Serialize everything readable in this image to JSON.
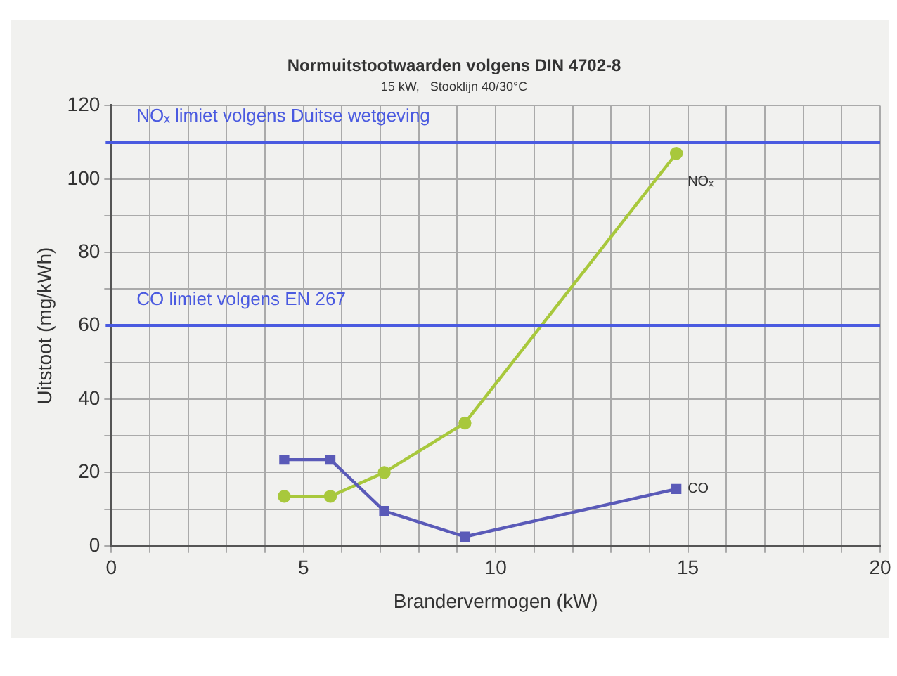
{
  "chart_data": {
    "type": "line",
    "title": "Normuitstootwaarden volgens DIN 4702-8",
    "subtitle": "15 kW,   Stooklijn 40/30°C",
    "xlabel": "Brandervermogen (kW)",
    "ylabel": "Uitstoot (mg/kWh)",
    "xlim": [
      0,
      20
    ],
    "xticks": [
      0,
      {
        "value": 1,
        "label": null
      },
      {
        "value": 2,
        "label": null
      },
      {
        "value": 3,
        "label": null
      },
      {
        "value": 4,
        "label": null
      },
      5,
      {
        "value": 6,
        "label": null
      },
      {
        "value": 7,
        "label": null
      },
      {
        "value": 8,
        "label": null
      },
      {
        "value": 9,
        "label": null
      },
      10,
      {
        "value": 11,
        "label": null
      },
      {
        "value": 12,
        "label": null
      },
      {
        "value": 13,
        "label": null
      },
      {
        "value": 14,
        "label": null
      },
      15,
      {
        "value": 16,
        "label": null
      },
      {
        "value": 17,
        "label": null
      },
      {
        "value": 18,
        "label": null
      },
      {
        "value": 19,
        "label": null
      },
      20
    ],
    "ylim": [
      0,
      120
    ],
    "yticks": [
      0,
      {
        "value": 10,
        "label": null
      },
      20,
      {
        "value": 30,
        "label": null
      },
      40,
      {
        "value": 50,
        "label": null
      },
      60,
      {
        "value": 70,
        "label": null
      },
      80,
      {
        "value": 90,
        "label": null
      },
      100,
      120
    ],
    "grid": true,
    "legend": false,
    "line_style": "solid",
    "x": [
      4.5,
      5.7,
      7.1,
      9.2,
      14.7
    ],
    "series": [
      {
        "name": "CO",
        "color": "#5a5ab8",
        "marker": "square",
        "values": [
          23.5,
          23.5,
          9.5,
          2.5,
          15.5
        ]
      },
      {
        "name": "NOₓ",
        "color": "#a8c83c",
        "marker": "circle",
        "values": [
          13.5,
          13.5,
          20,
          33.5,
          107
        ]
      }
    ],
    "ref_lines": [
      {
        "axis": "y",
        "value": 110,
        "label": "NOₓ limiet volgens Duitse wetgeving",
        "color": "#4a5ae0"
      },
      {
        "axis": "y",
        "value": 60,
        "label": "CO limiet volgens EN 267",
        "color": "#4a5ae0"
      }
    ]
  }
}
